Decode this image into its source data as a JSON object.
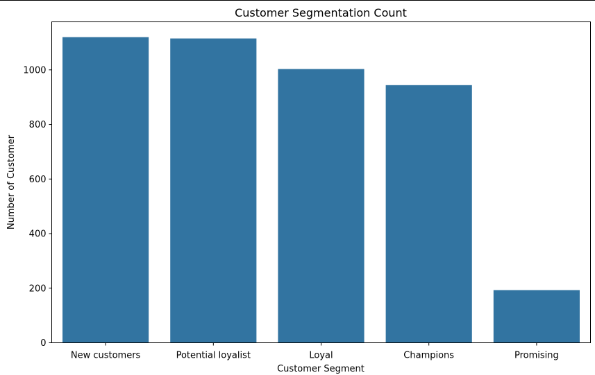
{
  "chart_data": {
    "type": "bar",
    "title": "Customer Segmentation Count",
    "xlabel": "Customer Segment",
    "ylabel": "Number of Customer",
    "categories": [
      "New customers",
      "Potential loyalist",
      "Loyal",
      "Champions",
      "Promising"
    ],
    "values": [
      1120,
      1115,
      1003,
      944,
      193
    ],
    "ylim": [
      0,
      1176
    ],
    "yticks": [
      0,
      200,
      400,
      600,
      800,
      1000
    ],
    "grid": false,
    "bar_color": "#3274a1"
  }
}
